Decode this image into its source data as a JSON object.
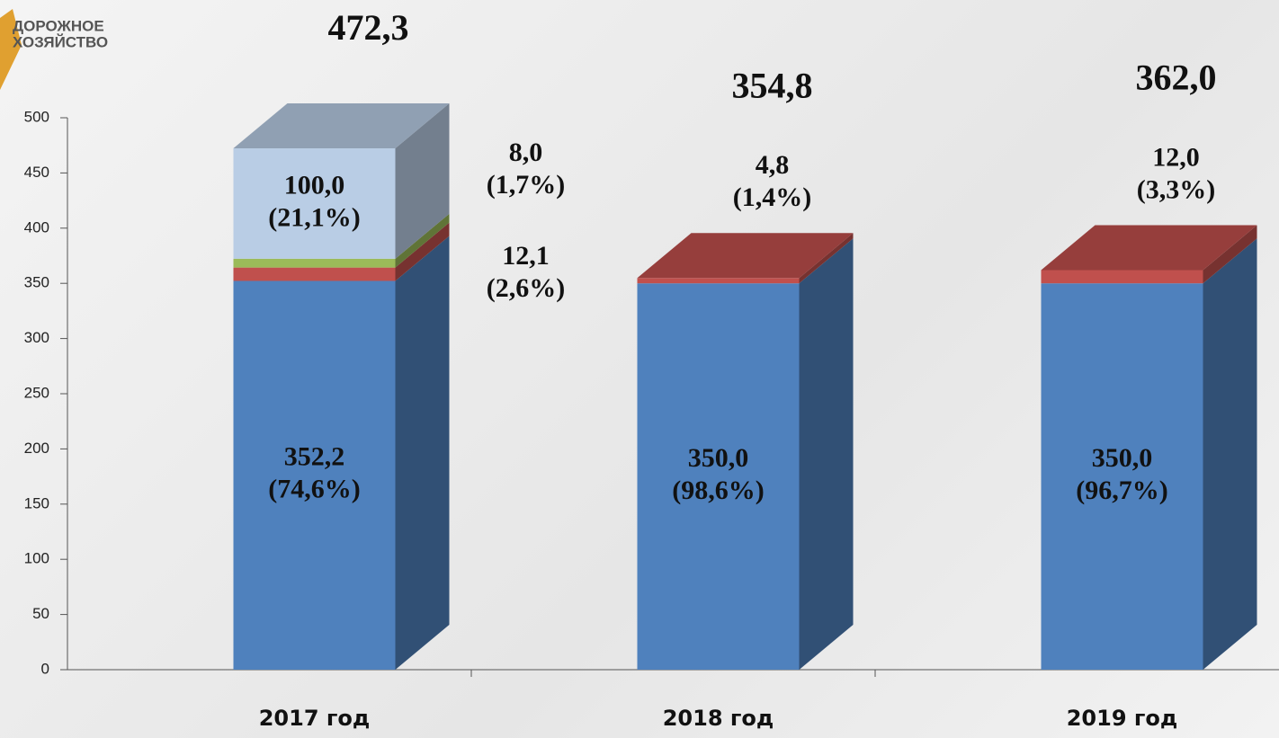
{
  "logo": [
    "ДОРОЖНОЕ",
    "ХОЗЯЙСТВО"
  ],
  "chart_data": {
    "type": "bar3d_stacked",
    "categories": [
      "2017 год",
      "2018 год",
      "2019 год"
    ],
    "totals": [
      472.3,
      354.8,
      362.0
    ],
    "total_labels": [
      "472,3",
      "354,8",
      "362,0"
    ],
    "series": [
      {
        "color": "#4f81bd",
        "values": [
          352.2,
          350.0,
          350.0
        ],
        "value_labels": [
          "352,2",
          "350,0",
          "350,0"
        ],
        "share_labels": [
          "(74,6%)",
          "(98,6%)",
          "(96,7%)"
        ]
      },
      {
        "color": "#c0504d",
        "values": [
          12.1,
          4.8,
          12.0
        ],
        "value_labels": [
          "12,1",
          "4,8",
          "12,0"
        ],
        "share_labels": [
          "(2,6%)",
          "(1,4%)",
          "(3,3%)"
        ]
      },
      {
        "color": "#9bbb59",
        "values": [
          8.0,
          null,
          null
        ],
        "value_labels": [
          "8,0",
          null,
          null
        ],
        "share_labels": [
          "(1,7%)",
          null,
          null
        ]
      },
      {
        "color": "#b9cde5",
        "values": [
          100.0,
          null,
          null
        ],
        "value_labels": [
          "100,0",
          null,
          null
        ],
        "share_labels": [
          "(21,1%)",
          null,
          null
        ]
      }
    ],
    "ylim": [
      0,
      500
    ],
    "yticks": [
      0,
      50,
      100,
      150,
      200,
      250,
      300,
      350,
      400,
      450,
      500
    ]
  }
}
